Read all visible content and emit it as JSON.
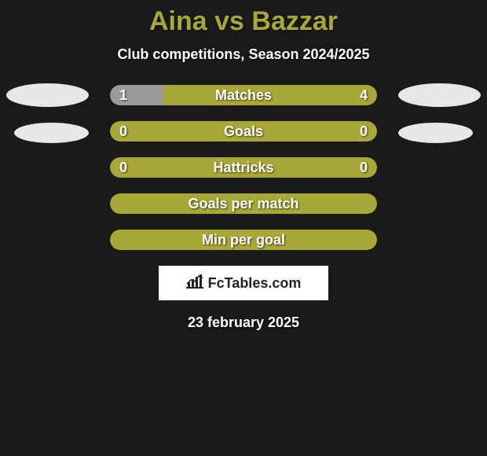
{
  "title": "Aina vs Bazzar",
  "subtitle": "Club competitions, Season 2024/2025",
  "title_color": "#a8a838",
  "text_color": "#ffffff",
  "background_color": "#1a1a1a",
  "ellipse_color": "#e7e7e7",
  "bar_olive": "#a8a838",
  "bar_gray": "#9a9a9a",
  "stats": [
    {
      "label": "Matches",
      "left_value": "1",
      "right_value": "4",
      "left_pct": 20,
      "right_pct": 80,
      "left_color": "#9a9a9a",
      "right_color": "#a8a838",
      "show_ellipses": true,
      "show_values": true
    },
    {
      "label": "Goals",
      "left_value": "0",
      "right_value": "0",
      "left_pct": 100,
      "right_pct": 0,
      "left_color": "#a8a838",
      "right_color": "#a8a838",
      "show_ellipses": true,
      "show_values": true,
      "ellipse_offset": true
    },
    {
      "label": "Hattricks",
      "left_value": "0",
      "right_value": "0",
      "left_pct": 100,
      "right_pct": 0,
      "left_color": "#a8a838",
      "right_color": "#a8a838",
      "show_ellipses": false,
      "show_values": true
    },
    {
      "label": "Goals per match",
      "left_value": "",
      "right_value": "",
      "left_pct": 100,
      "right_pct": 0,
      "left_color": "#a8a838",
      "right_color": "#a8a838",
      "show_ellipses": false,
      "show_values": false
    },
    {
      "label": "Min per goal",
      "left_value": "",
      "right_value": "",
      "left_pct": 100,
      "right_pct": 0,
      "left_color": "#a8a838",
      "right_color": "#a8a838",
      "show_ellipses": false,
      "show_values": false
    }
  ],
  "logo_text": "FcTables.com",
  "date": "23 february 2025"
}
